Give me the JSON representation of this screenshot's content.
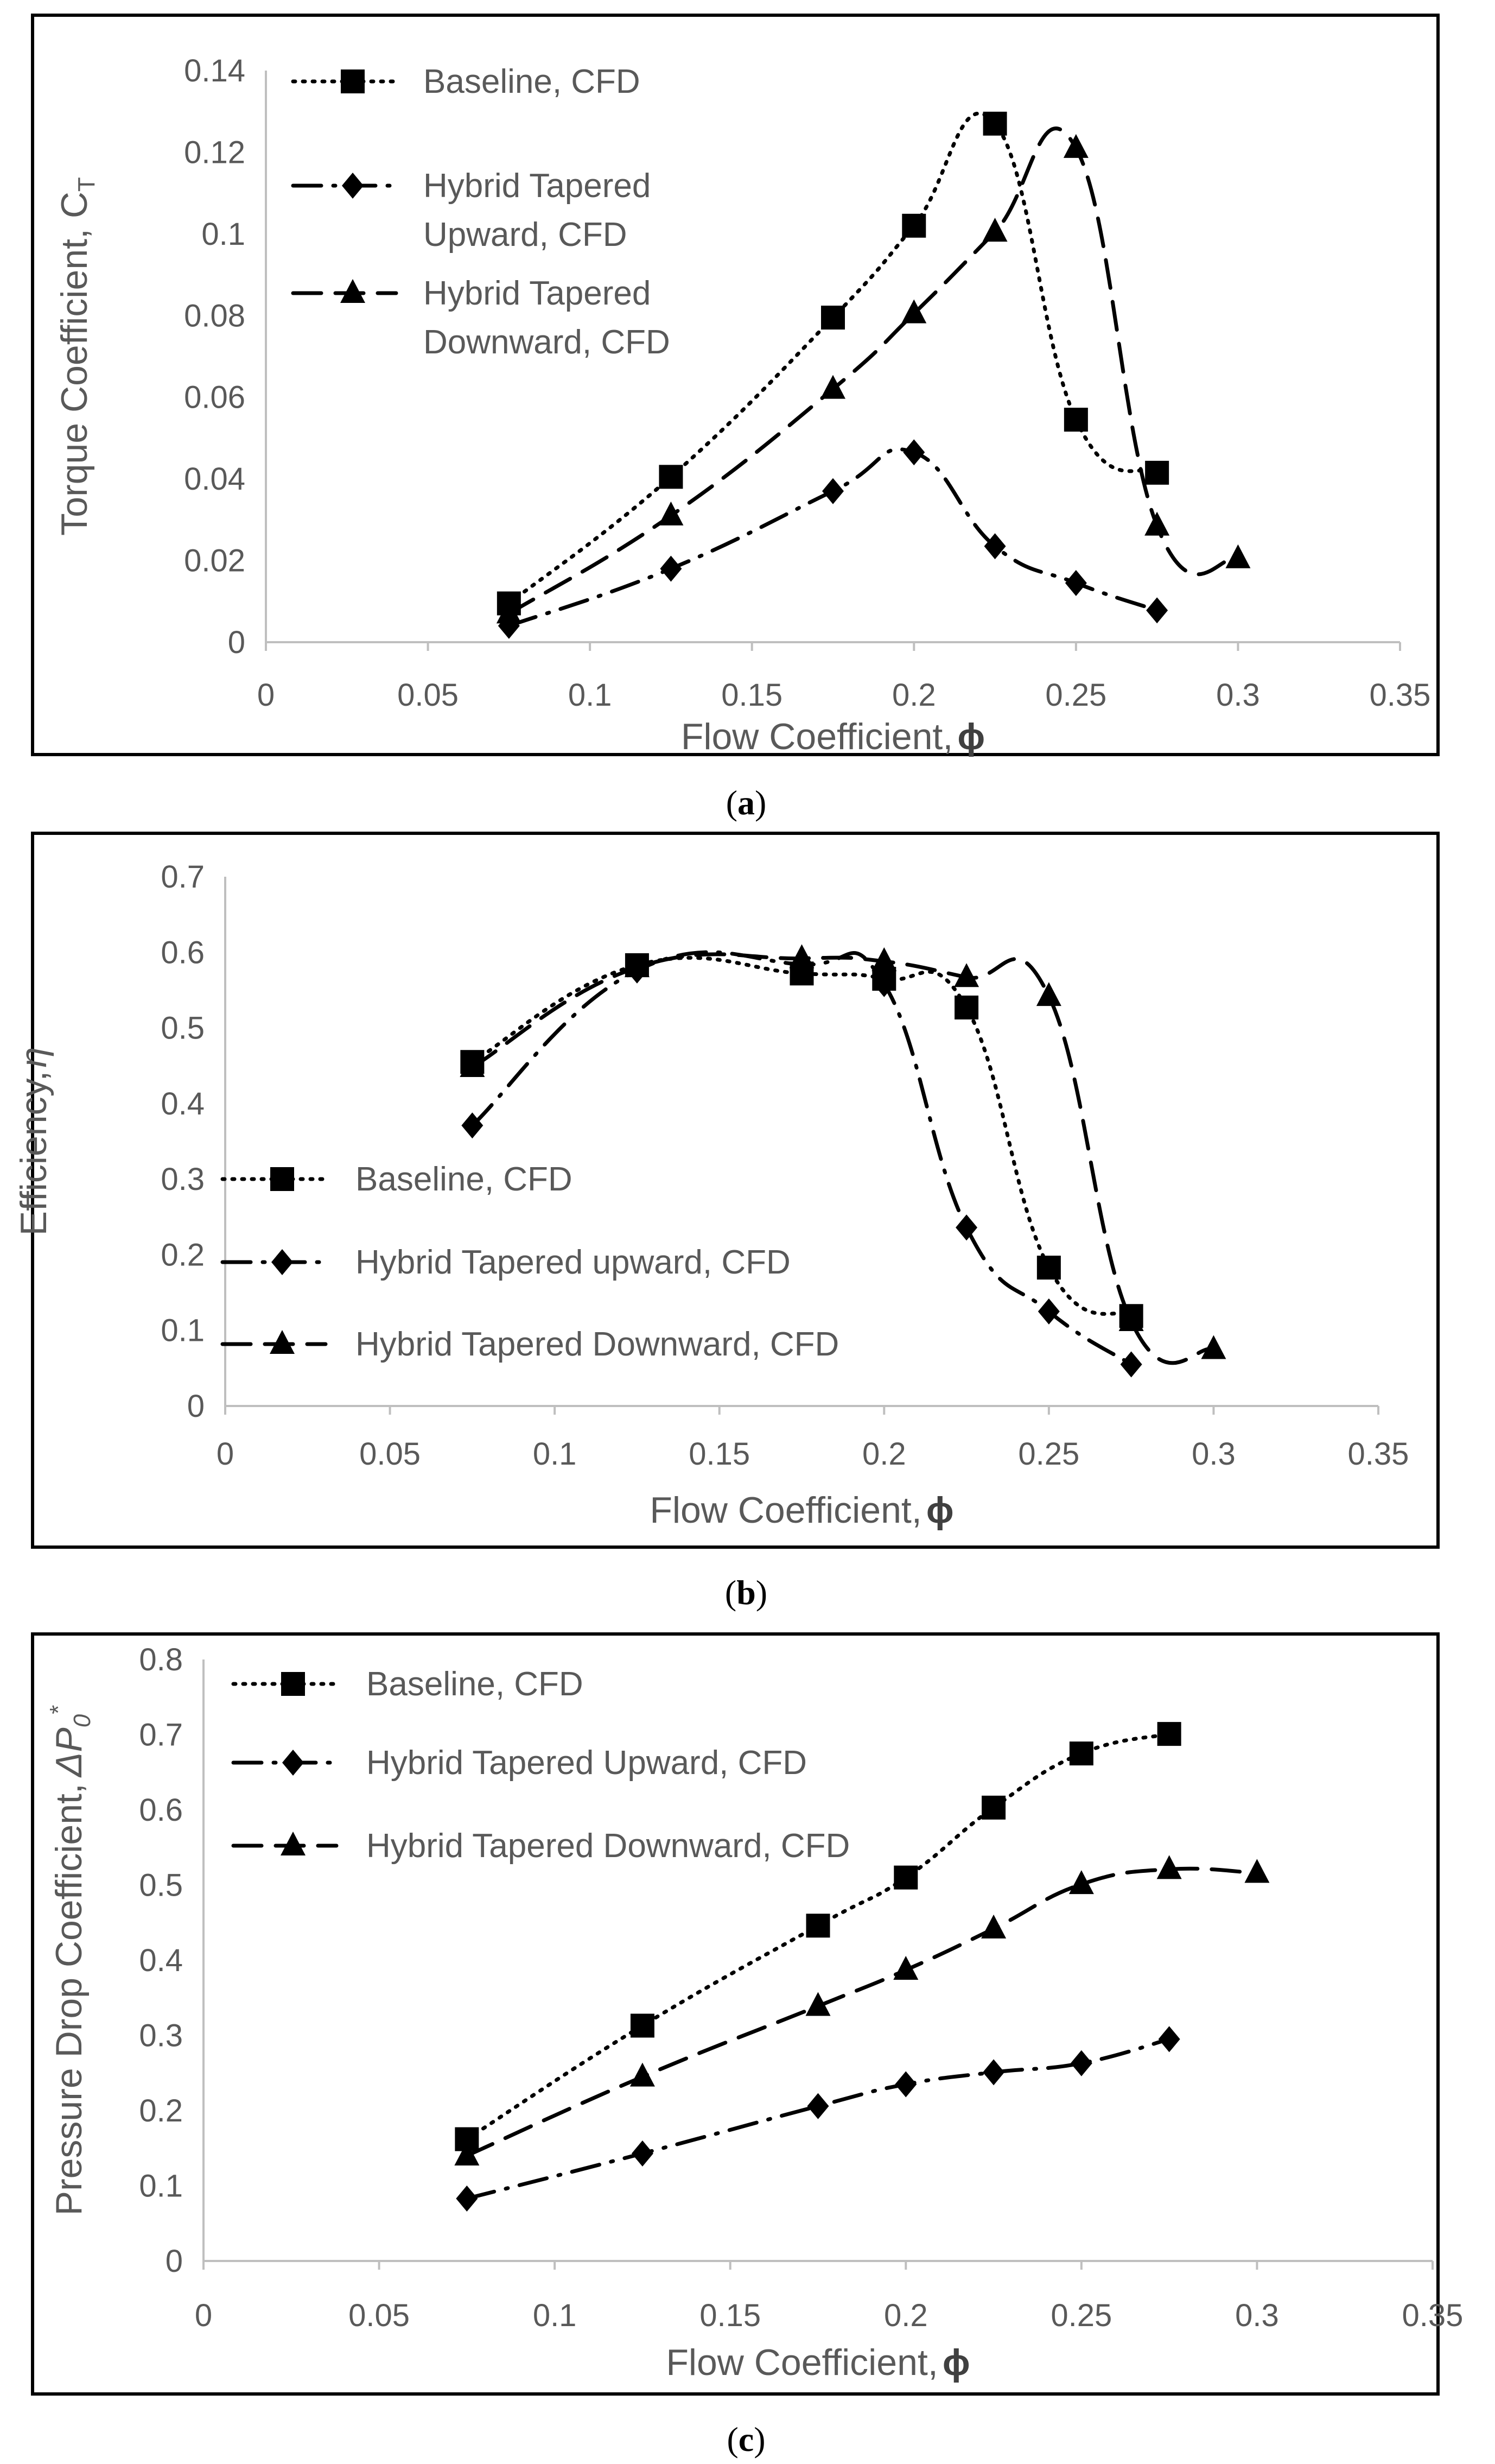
{
  "chart_data": [
    {
      "type": "line",
      "caption": "a",
      "xlabel": "Flow Coefficient,",
      "xlabel_symbol": "ϕ",
      "ylabel": "Torque Coefficient, C",
      "ylabel_sub": "T",
      "xlim": [
        0,
        0.35
      ],
      "ylim": [
        0,
        0.14
      ],
      "x_ticks": [
        "0",
        "0.05",
        "0.1",
        "0.15",
        "0.2",
        "0.25",
        "0.3",
        "0.35"
      ],
      "y_ticks": [
        "0",
        "0.02",
        "0.04",
        "0.06",
        "0.08",
        "0.1",
        "0.12",
        "0.14"
      ],
      "y_tick_values": [
        0,
        0.02,
        0.04,
        0.06,
        0.08,
        0.1,
        0.12,
        0.14
      ],
      "legend_position": "top-left",
      "series": [
        {
          "name": "Baseline, CFD",
          "legend_lines": [
            "Baseline, CFD"
          ],
          "marker": "square",
          "dash": "dot",
          "x": [
            0.075,
            0.125,
            0.175,
            0.2,
            0.225,
            0.25,
            0.275
          ],
          "y": [
            0.0095,
            0.0405,
            0.0795,
            0.102,
            0.127,
            0.0545,
            0.0415
          ]
        },
        {
          "name": "Hybrid Tapered Upward, CFD",
          "legend_lines": [
            "Hybrid Tapered",
            "Upward, CFD"
          ],
          "marker": "diamond",
          "dash": "dashdot",
          "x": [
            0.075,
            0.125,
            0.175,
            0.2,
            0.225,
            0.25,
            0.275
          ],
          "y": [
            0.004,
            0.018,
            0.037,
            0.0465,
            0.0235,
            0.0145,
            0.0078
          ]
        },
        {
          "name": "Hybrid Tapered Downward, CFD",
          "legend_lines": [
            "Hybrid Tapered",
            "Downward, CFD"
          ],
          "marker": "triangle",
          "dash": "dash",
          "x": [
            0.075,
            0.125,
            0.175,
            0.2,
            0.225,
            0.25,
            0.275,
            0.3
          ],
          "y": [
            0.007,
            0.031,
            0.062,
            0.0805,
            0.1005,
            0.121,
            0.0285,
            0.0205
          ]
        }
      ]
    },
    {
      "type": "line",
      "caption": "b",
      "xlabel": "Flow Coefficient,",
      "xlabel_symbol": "ϕ",
      "ylabel": "Efficiency,",
      "ylabel_sub": "η",
      "xlim": [
        0,
        0.35
      ],
      "ylim": [
        0,
        0.7
      ],
      "x_ticks": [
        "0",
        "0.05",
        "0.1",
        "0.15",
        "0.2",
        "0.25",
        "0.3",
        "0.35"
      ],
      "y_ticks": [
        "0",
        "0.1",
        "0.2",
        "0.3",
        "0.4",
        "0.5",
        "0.6",
        "0.7"
      ],
      "y_tick_values": [
        0,
        0.1,
        0.2,
        0.3,
        0.4,
        0.5,
        0.6,
        0.7
      ],
      "legend_position": "bottom-left",
      "series": [
        {
          "name": "Baseline, CFD",
          "legend_lines": [
            "Baseline, CFD"
          ],
          "marker": "square",
          "dash": "dot",
          "x": [
            0.075,
            0.125,
            0.175,
            0.2,
            0.225,
            0.25,
            0.275
          ],
          "y": [
            0.455,
            0.583,
            0.572,
            0.565,
            0.527,
            0.183,
            0.119
          ]
        },
        {
          "name": "Hybrid Tapered upward, CFD",
          "legend_lines": [
            "Hybrid Tapered upward, CFD"
          ],
          "marker": "diamond",
          "dash": "dashdot",
          "x": [
            0.075,
            0.125,
            0.175,
            0.2,
            0.225,
            0.25,
            0.275
          ],
          "y": [
            0.371,
            0.576,
            0.584,
            0.558,
            0.236,
            0.125,
            0.055
          ]
        },
        {
          "name": "Hybrid Tapered Downward, CFD",
          "legend_lines": [
            "Hybrid Tapered Downward, CFD"
          ],
          "marker": "triangle",
          "dash": "dash",
          "x": [
            0.075,
            0.125,
            0.175,
            0.2,
            0.225,
            0.25,
            0.275,
            0.3
          ],
          "y": [
            0.448,
            0.58,
            0.592,
            0.588,
            0.567,
            0.542,
            0.112,
            0.075
          ]
        }
      ]
    },
    {
      "type": "line",
      "caption": "c",
      "xlabel": "Flow Coefficient,",
      "xlabel_symbol": "ϕ",
      "ylabel": "Pressure Drop Coefficient,",
      "ylabel_sub": "ΔP",
      "ylabel_sub2": "0",
      "ylabel_sup": "*",
      "xlim": [
        0,
        0.35
      ],
      "ylim": [
        0,
        0.8
      ],
      "x_ticks": [
        "0",
        "0.05",
        "0.1",
        "0.15",
        "0.2",
        "0.25",
        "0.3",
        "0.35"
      ],
      "y_ticks": [
        "0",
        "0.1",
        "0.2",
        "0.3",
        "0.4",
        "0.5",
        "0.6",
        "0.7",
        "0.8"
      ],
      "y_tick_values": [
        0,
        0.1,
        0.2,
        0.3,
        0.4,
        0.5,
        0.6,
        0.7,
        0.8
      ],
      "legend_position": "top-left",
      "series": [
        {
          "name": "Baseline, CFD",
          "legend_lines": [
            "Baseline, CFD"
          ],
          "marker": "square",
          "dash": "dot",
          "x": [
            0.075,
            0.125,
            0.175,
            0.2,
            0.225,
            0.25,
            0.275
          ],
          "y": [
            0.162,
            0.313,
            0.446,
            0.51,
            0.603,
            0.675,
            0.701
          ]
        },
        {
          "name": "Hybrid Tapered Upward, CFD",
          "legend_lines": [
            "Hybrid Tapered Upward, CFD"
          ],
          "marker": "diamond",
          "dash": "dashdot",
          "x": [
            0.075,
            0.125,
            0.175,
            0.2,
            0.225,
            0.25,
            0.275
          ],
          "y": [
            0.083,
            0.143,
            0.206,
            0.235,
            0.251,
            0.263,
            0.295
          ]
        },
        {
          "name": "Hybrid Tapered Downward, CFD",
          "legend_lines": [
            "Hybrid Tapered Downward, CFD"
          ],
          "marker": "triangle",
          "dash": "dash",
          "x": [
            0.075,
            0.125,
            0.175,
            0.2,
            0.225,
            0.25,
            0.275,
            0.3
          ],
          "y": [
            0.14,
            0.245,
            0.339,
            0.387,
            0.442,
            0.501,
            0.521,
            0.516
          ]
        }
      ]
    }
  ]
}
